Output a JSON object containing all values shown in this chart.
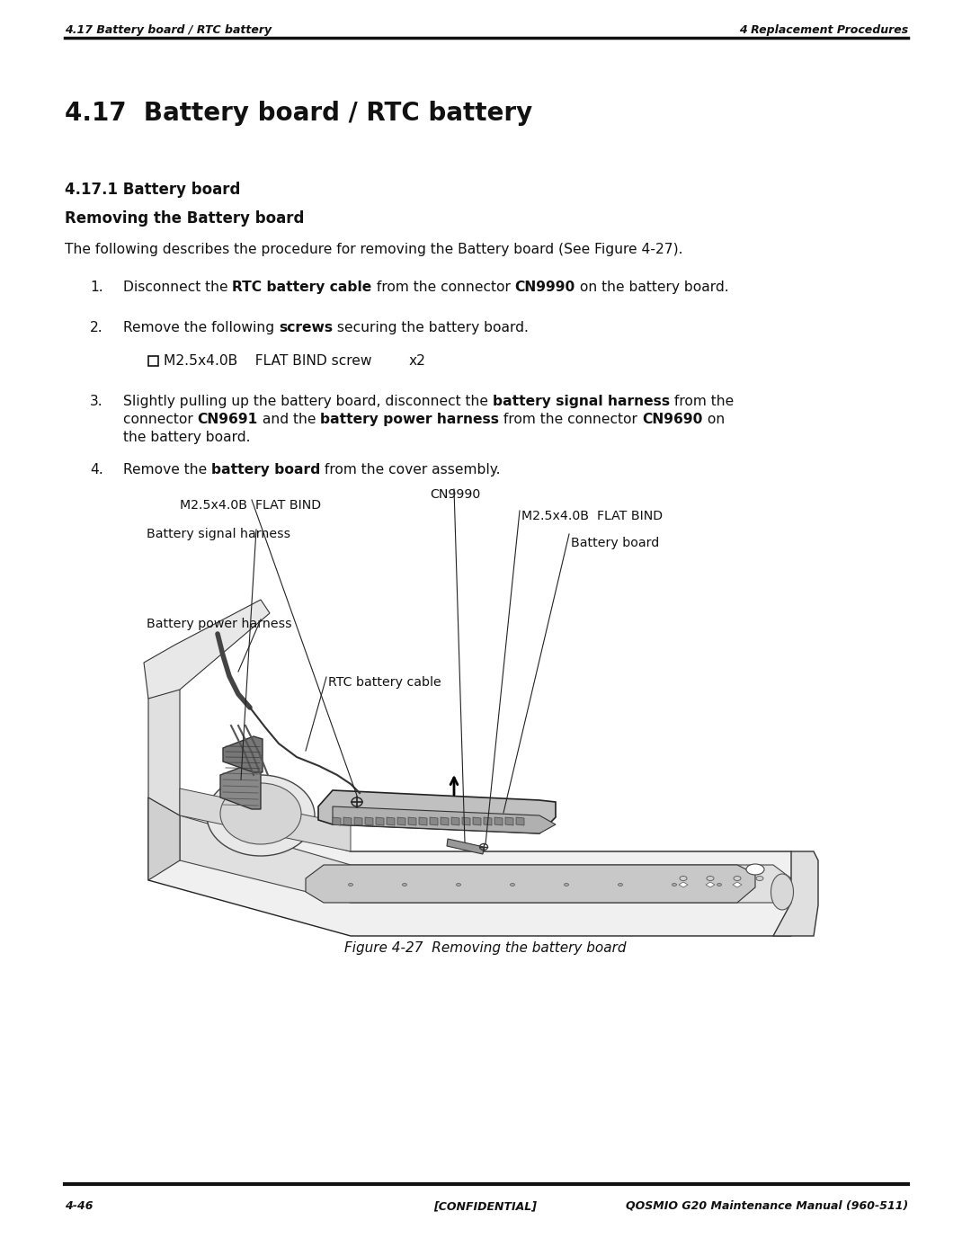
{
  "header_left": "4.17 Battery board / RTC battery",
  "header_right": "4 Replacement Procedures",
  "footer_left": "4-46",
  "footer_center": "[CONFIDENTIAL]",
  "footer_right": "QOSMIO G20 Maintenance Manual (960-511)",
  "main_title": "4.17  Battery board / RTC battery",
  "section_title": "4.17.1 Battery board",
  "subsection_title": "Removing the Battery board",
  "intro_text": "The following describes the procedure for removing the Battery board (See Figure 4-27).",
  "step1_pre": "Disconnect the ",
  "step1_bold1": "RTC battery cable",
  "step1_mid": " from the connector ",
  "step1_bold2": "CN9990",
  "step1_post": " on the battery board.",
  "step2_pre": "Remove the following ",
  "step2_bold": "screws",
  "step2_post": " securing the battery board.",
  "screw_text": "M2.5x4.0B    FLAT BIND screw",
  "screw_x2": "x2",
  "step3_pre": "Slightly pulling up the battery board, disconnect the ",
  "step3_bold1": "battery signal harness",
  "step3_mid1": " from the",
  "step3_line2_pre": "connector ",
  "step3_bold2": "CN9691",
  "step3_mid2": " and the ",
  "step3_bold3": "battery power harness",
  "step3_mid3": " from the connector ",
  "step3_bold4": "CN9690",
  "step3_end1": " on",
  "step3_line3": "the battery board.",
  "step4_pre": "Remove the ",
  "step4_bold": "battery board",
  "step4_post": " from the cover assembly.",
  "lbl_m2_left": "M2.5x4.0B  FLAT BIND",
  "lbl_cn9990": "CN9990",
  "lbl_m2_right": "M2.5x4.0B  FLAT BIND",
  "lbl_signal": "Battery signal harness",
  "lbl_board": "Battery board",
  "lbl_rtc": "RTC battery cable",
  "lbl_power": "Battery power harness",
  "figure_caption": "Figure 4-27  Removing the battery board",
  "bg_color": "#ffffff",
  "text_color": "#111111"
}
